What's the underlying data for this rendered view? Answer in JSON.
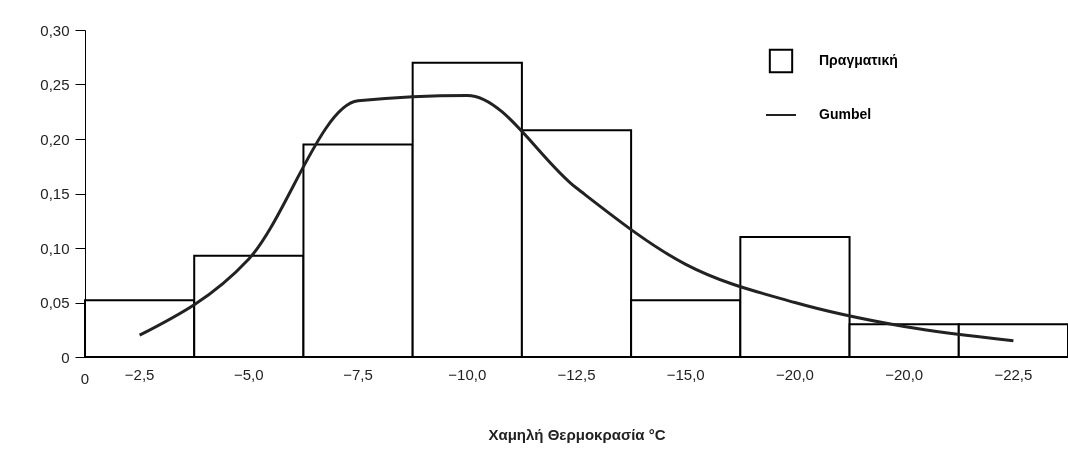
{
  "chart_data": {
    "type": "bar",
    "xlabel": "Χαμηλή Θερμοκρασία °C",
    "categories": [
      "−2,5",
      "−5,0",
      "−7,5",
      "−10,0",
      "−12,5",
      "−15,0",
      "−20,0",
      "−20,0",
      "−22,5"
    ],
    "series": [
      {
        "name": "Πραγματική",
        "color": "#ffffff",
        "values": [
          0.052,
          0.093,
          0.195,
          0.27,
          0.208,
          0.052,
          0.11,
          0.03,
          0.03
        ]
      },
      {
        "name": "Gumbel",
        "type": "line",
        "color": "#222222",
        "values": [
          0.02,
          0.09,
          0.235,
          0.24,
          0.155,
          0.085,
          0.05,
          0.028,
          0.015
        ]
      }
    ],
    "ylim": [
      0,
      0.3
    ],
    "yticks": [
      0,
      {
        "value": 0.05,
        "label": "0,05"
      },
      {
        "value": 0.1,
        "label": "0,10"
      },
      {
        "value": 0.15,
        "label": "0,15"
      },
      {
        "value": 0.2,
        "label": "0,20"
      },
      {
        "value": 0.25,
        "label": "0,25"
      },
      {
        "value": 0.3,
        "label": "0,30"
      }
    ],
    "annotations": [
      "0"
    ],
    "legend": "top right",
    "grid": false
  }
}
